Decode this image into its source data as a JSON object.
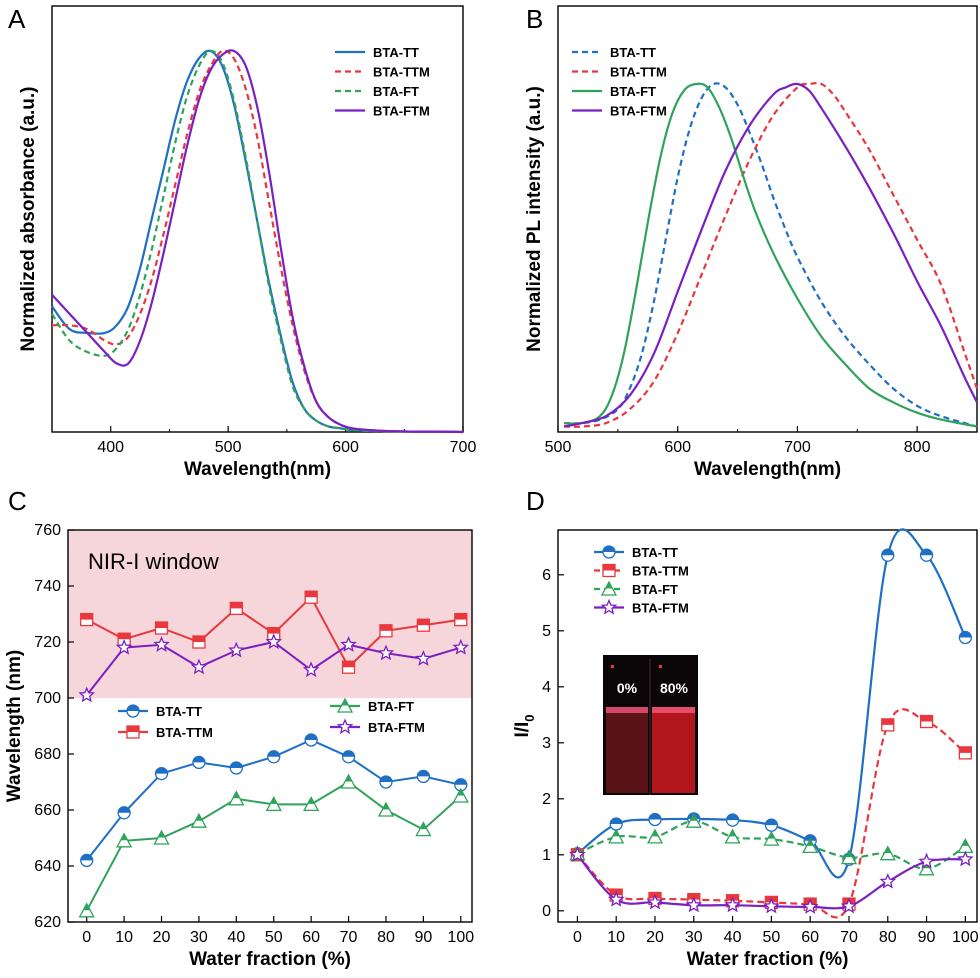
{
  "chart_data": [
    {
      "type": "line",
      "panel": "A",
      "xlabel": "Wavelength(nm)",
      "ylabel": "Normalized absorbance (a.u.)",
      "xlim": [
        350,
        700
      ],
      "ylim": [
        0,
        1
      ],
      "x_ticks": [
        400,
        500,
        600,
        700
      ],
      "y_ticks_shown": false,
      "grid": false,
      "legend_position": "top-right",
      "series": [
        {
          "name": "BTA-TT",
          "color": "#1f6fc5",
          "dash": "solid",
          "x": [
            350,
            365,
            380,
            395,
            405,
            415,
            425,
            435,
            445,
            455,
            465,
            475,
            485,
            495,
            505,
            515,
            525,
            535,
            545,
            555,
            565,
            575,
            585,
            595,
            605,
            620,
            640,
            660,
            680,
            700
          ],
          "y": [
            0.33,
            0.27,
            0.26,
            0.26,
            0.28,
            0.33,
            0.43,
            0.56,
            0.69,
            0.82,
            0.92,
            0.98,
            1.0,
            0.96,
            0.86,
            0.71,
            0.55,
            0.39,
            0.25,
            0.13,
            0.06,
            0.03,
            0.015,
            0.01,
            0.005,
            0.003,
            0.002,
            0.001,
            0.001,
            0.0
          ]
        },
        {
          "name": "BTA-TTM",
          "color": "#e8383d",
          "dash": "dashed",
          "x": [
            350,
            365,
            380,
            395,
            405,
            415,
            425,
            435,
            445,
            455,
            465,
            475,
            485,
            495,
            505,
            515,
            525,
            535,
            545,
            555,
            565,
            575,
            585,
            595,
            605,
            620,
            640,
            660,
            680,
            700
          ],
          "y": [
            0.28,
            0.28,
            0.27,
            0.24,
            0.23,
            0.25,
            0.31,
            0.4,
            0.52,
            0.65,
            0.78,
            0.89,
            0.96,
            1.0,
            0.98,
            0.9,
            0.77,
            0.6,
            0.43,
            0.28,
            0.16,
            0.08,
            0.04,
            0.02,
            0.01,
            0.005,
            0.002,
            0.001,
            0.001,
            0.0
          ]
        },
        {
          "name": "BTA-FT",
          "color": "#2fa35a",
          "dash": "dashed",
          "x": [
            350,
            365,
            380,
            395,
            405,
            415,
            425,
            435,
            445,
            455,
            465,
            475,
            485,
            495,
            505,
            515,
            525,
            535,
            545,
            555,
            565,
            575,
            585,
            595,
            605,
            620,
            640,
            660,
            680,
            700
          ],
          "y": [
            0.31,
            0.24,
            0.21,
            0.2,
            0.22,
            0.27,
            0.36,
            0.48,
            0.62,
            0.76,
            0.88,
            0.96,
            1.0,
            0.97,
            0.87,
            0.72,
            0.55,
            0.38,
            0.24,
            0.12,
            0.06,
            0.03,
            0.015,
            0.01,
            0.005,
            0.003,
            0.002,
            0.001,
            0.001,
            0.0
          ]
        },
        {
          "name": "BTA-FTM",
          "color": "#7a1fc2",
          "dash": "solid",
          "x": [
            350,
            365,
            380,
            395,
            405,
            415,
            425,
            435,
            445,
            455,
            465,
            475,
            485,
            495,
            505,
            515,
            525,
            535,
            545,
            555,
            565,
            575,
            585,
            595,
            605,
            620,
            640,
            660,
            680,
            700
          ],
          "y": [
            0.36,
            0.31,
            0.26,
            0.21,
            0.18,
            0.18,
            0.24,
            0.34,
            0.47,
            0.61,
            0.75,
            0.87,
            0.95,
            0.99,
            1.0,
            0.96,
            0.85,
            0.68,
            0.48,
            0.3,
            0.17,
            0.08,
            0.04,
            0.02,
            0.01,
            0.005,
            0.002,
            0.001,
            0.001,
            0.0
          ]
        }
      ]
    },
    {
      "type": "line",
      "panel": "B",
      "xlabel": "Wavelength(nm)",
      "ylabel": "Normalized PL intensity (a.u.)",
      "xlim": [
        500,
        850
      ],
      "ylim": [
        0,
        1.1
      ],
      "x_ticks": [
        500,
        600,
        700,
        800
      ],
      "y_ticks_shown": false,
      "grid": false,
      "legend_position": "top-left",
      "series": [
        {
          "name": "BTA-TT",
          "color": "#1f6fc5",
          "dash": "dashed",
          "x": [
            505,
            520,
            535,
            550,
            560,
            570,
            580,
            590,
            600,
            610,
            620,
            630,
            640,
            650,
            660,
            670,
            680,
            690,
            700,
            720,
            740,
            760,
            780,
            800,
            820,
            850
          ],
          "y": [
            0.02,
            0.02,
            0.03,
            0.06,
            0.12,
            0.22,
            0.37,
            0.55,
            0.73,
            0.87,
            0.96,
            1.0,
            0.99,
            0.94,
            0.86,
            0.77,
            0.67,
            0.58,
            0.5,
            0.37,
            0.27,
            0.19,
            0.12,
            0.07,
            0.04,
            0.01
          ]
        },
        {
          "name": "BTA-TTM",
          "color": "#e8383d",
          "dash": "dashed",
          "x": [
            505,
            520,
            540,
            560,
            580,
            600,
            620,
            640,
            660,
            680,
            700,
            710,
            720,
            730,
            740,
            760,
            780,
            800,
            820,
            840,
            850
          ],
          "y": [
            0.01,
            0.01,
            0.02,
            0.06,
            0.14,
            0.28,
            0.45,
            0.62,
            0.78,
            0.91,
            0.99,
            1.0,
            1.0,
            0.97,
            0.92,
            0.81,
            0.68,
            0.55,
            0.42,
            0.22,
            0.12
          ]
        },
        {
          "name": "BTA-FT",
          "color": "#2fa35a",
          "dash": "solid",
          "x": [
            505,
            520,
            535,
            545,
            555,
            565,
            575,
            585,
            595,
            605,
            615,
            625,
            635,
            645,
            655,
            665,
            680,
            700,
            720,
            740,
            760,
            780,
            800,
            820,
            850
          ],
          "y": [
            0.02,
            0.02,
            0.04,
            0.1,
            0.22,
            0.4,
            0.6,
            0.78,
            0.91,
            0.98,
            1.0,
            0.99,
            0.93,
            0.84,
            0.73,
            0.63,
            0.51,
            0.38,
            0.27,
            0.19,
            0.12,
            0.08,
            0.05,
            0.03,
            0.01
          ]
        },
        {
          "name": "BTA-FTM",
          "color": "#7a1fc2",
          "dash": "solid",
          "x": [
            505,
            520,
            540,
            560,
            580,
            600,
            620,
            640,
            660,
            680,
            690,
            700,
            710,
            720,
            740,
            760,
            780,
            800,
            820,
            840,
            850
          ],
          "y": [
            0.01,
            0.02,
            0.04,
            0.1,
            0.22,
            0.4,
            0.58,
            0.75,
            0.88,
            0.97,
            0.99,
            1.0,
            0.98,
            0.93,
            0.82,
            0.7,
            0.57,
            0.43,
            0.3,
            0.15,
            0.08
          ]
        }
      ]
    },
    {
      "type": "line",
      "panel": "C",
      "xlabel": "Water fraction (%)",
      "ylabel": "Wavelength (nm)",
      "xlim": [
        -5,
        103
      ],
      "ylim": [
        620,
        760
      ],
      "x_ticks": [
        0,
        10,
        20,
        30,
        40,
        50,
        60,
        70,
        80,
        90,
        100
      ],
      "y_ticks": [
        620,
        640,
        660,
        680,
        700,
        720,
        740,
        760
      ],
      "grid": false,
      "annotation": {
        "text": "NIR-I window",
        "y_range": [
          700,
          760
        ],
        "fill": "#f6d6db"
      },
      "x": [
        0,
        10,
        20,
        30,
        40,
        50,
        60,
        70,
        80,
        90,
        100
      ],
      "series": [
        {
          "name": "BTA-TT",
          "color": "#1f6fc5",
          "marker": "circle",
          "values": [
            642,
            659,
            673,
            677,
            675,
            679,
            685,
            679,
            670,
            672,
            669
          ]
        },
        {
          "name": "BTA-TTM",
          "color": "#e8383d",
          "marker": "square",
          "values": [
            728,
            721,
            725,
            720,
            732,
            723,
            736,
            711,
            724,
            726,
            728
          ]
        },
        {
          "name": "BTA-FT",
          "color": "#2fa35a",
          "marker": "triangle",
          "values": [
            624,
            649,
            650,
            656,
            664,
            662,
            662,
            670,
            660,
            653,
            665
          ]
        },
        {
          "name": "BTA-FTM",
          "color": "#7a1fc2",
          "marker": "star",
          "values": [
            701,
            718,
            719,
            711,
            717,
            720,
            710,
            719,
            716,
            714,
            718
          ]
        }
      ]
    },
    {
      "type": "line",
      "panel": "D",
      "xlabel": "Water fraction (%)",
      "ylabel": "I/I0",
      "xlim": [
        -5,
        103
      ],
      "ylim": [
        -0.2,
        6.8
      ],
      "x_ticks": [
        0,
        10,
        20,
        30,
        40,
        50,
        60,
        70,
        80,
        90,
        100
      ],
      "y_ticks": [
        0,
        1,
        2,
        3,
        4,
        5,
        6
      ],
      "grid": false,
      "legend_position": "top-left",
      "inset_labels": [
        "0%",
        "80%"
      ],
      "x": [
        0,
        10,
        20,
        30,
        40,
        50,
        60,
        70,
        80,
        90,
        100
      ],
      "series": [
        {
          "name": "BTA-TT",
          "color": "#1f6fc5",
          "marker": "circle",
          "dash": "solid",
          "values": [
            1.02,
            1.55,
            1.63,
            1.64,
            1.62,
            1.53,
            1.25,
            0.92,
            6.35,
            6.35,
            4.88
          ]
        },
        {
          "name": "BTA-TTM",
          "color": "#e8383d",
          "marker": "square",
          "dash": "dashed",
          "values": [
            1.0,
            0.28,
            0.22,
            0.2,
            0.18,
            0.15,
            0.12,
            0.12,
            3.32,
            3.38,
            2.82
          ]
        },
        {
          "name": "BTA-FT",
          "color": "#2fa35a",
          "marker": "triangle",
          "dash": "dashed",
          "values": [
            1.02,
            1.32,
            1.32,
            1.6,
            1.32,
            1.28,
            1.15,
            0.95,
            1.02,
            0.75,
            1.15
          ]
        },
        {
          "name": "BTA-FTM",
          "color": "#7a1fc2",
          "marker": "star",
          "dash": "solid",
          "values": [
            1.0,
            0.2,
            0.15,
            0.1,
            0.1,
            0.08,
            0.07,
            0.08,
            0.52,
            0.88,
            0.92
          ]
        }
      ]
    }
  ],
  "panels": {
    "A": {
      "letter": "A"
    },
    "B": {
      "letter": "B"
    },
    "C": {
      "letter": "C"
    },
    "D": {
      "letter": "D"
    }
  }
}
